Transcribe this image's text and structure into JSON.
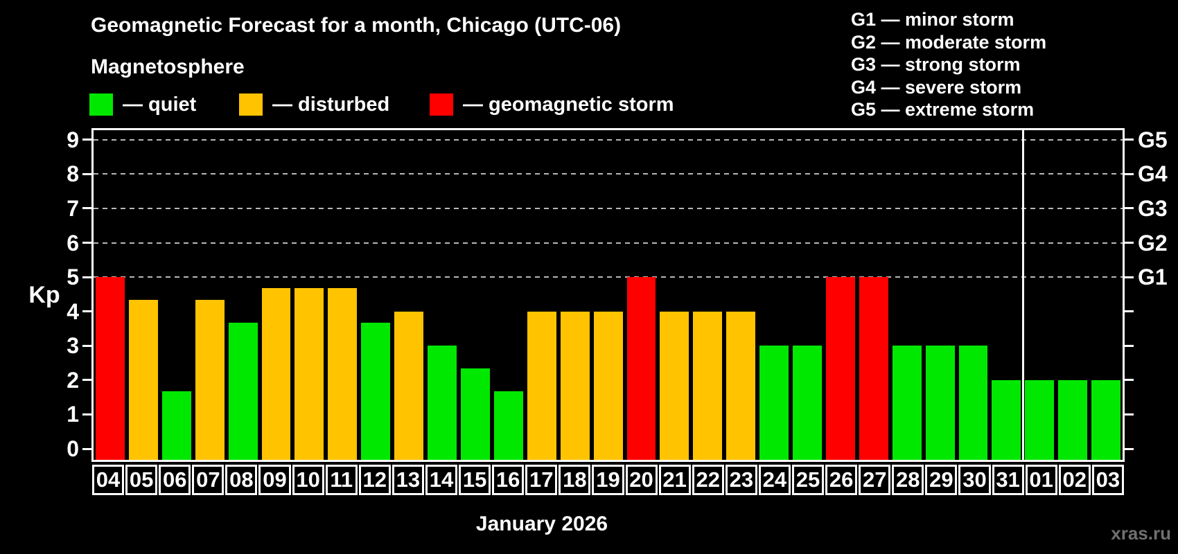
{
  "header": {
    "title": "Geomagnetic Forecast for a month, Chicago (UTC-06)",
    "subtitle": "Magnetosphere"
  },
  "legend": {
    "items": [
      {
        "label": "— quiet",
        "status": "quiet"
      },
      {
        "label": "— disturbed",
        "status": "disturbed"
      },
      {
        "label": "— geomagnetic storm",
        "status": "storm"
      }
    ]
  },
  "storm_scale": [
    "G1 — minor storm",
    "G2 — moderate storm",
    "G3 — strong storm",
    "G4 — severe storm",
    "G5 — extreme storm"
  ],
  "colors": {
    "quiet": "#00e800",
    "disturbed": "#ffc300",
    "storm": "#ff0000",
    "gridline": "#b8b8b8",
    "axis": "#ffffff",
    "watermark": "#707070"
  },
  "chart_data": {
    "type": "bar",
    "title": "Geomagnetic Forecast for a month, Chicago (UTC-06)",
    "subtitle": "Magnetosphere",
    "ylabel": "Kp",
    "xlabel": "January 2026",
    "ylim": [
      0,
      9
    ],
    "yticks": [
      0,
      1,
      2,
      3,
      4,
      5,
      6,
      7,
      8,
      9
    ],
    "grid": "dashed horizontal lines at Kp 5-9 only",
    "grid_kp_values": [
      5,
      6,
      7,
      8,
      9
    ],
    "right_axis_labels": [
      {
        "label": "G5",
        "kp": 9
      },
      {
        "label": "G4",
        "kp": 8
      },
      {
        "label": "G3",
        "kp": 7
      },
      {
        "label": "G2",
        "kp": 6
      },
      {
        "label": "G1",
        "kp": 5
      }
    ],
    "categories": [
      "04",
      "05",
      "06",
      "07",
      "08",
      "09",
      "10",
      "11",
      "12",
      "13",
      "14",
      "15",
      "16",
      "17",
      "18",
      "19",
      "20",
      "21",
      "22",
      "23",
      "24",
      "25",
      "26",
      "27",
      "28",
      "29",
      "30",
      "31",
      "01",
      "02",
      "03"
    ],
    "values": [
      5,
      4.33,
      1.67,
      4.33,
      3.67,
      4.67,
      4.67,
      4.67,
      3.67,
      4,
      3,
      2.33,
      1.67,
      4,
      4,
      4,
      5,
      4,
      4,
      4,
      3,
      3,
      5,
      5,
      3,
      3,
      3,
      2,
      2,
      2,
      2
    ],
    "statuses": [
      "storm",
      "disturbed",
      "quiet",
      "disturbed",
      "quiet",
      "disturbed",
      "disturbed",
      "disturbed",
      "quiet",
      "disturbed",
      "quiet",
      "quiet",
      "quiet",
      "disturbed",
      "disturbed",
      "disturbed",
      "storm",
      "disturbed",
      "disturbed",
      "disturbed",
      "quiet",
      "quiet",
      "storm",
      "storm",
      "quiet",
      "quiet",
      "quiet",
      "quiet",
      "quiet",
      "quiet",
      "quiet"
    ],
    "month_separator_after_index": 27,
    "legend_position": "top-left"
  },
  "watermark": "xras.ru"
}
